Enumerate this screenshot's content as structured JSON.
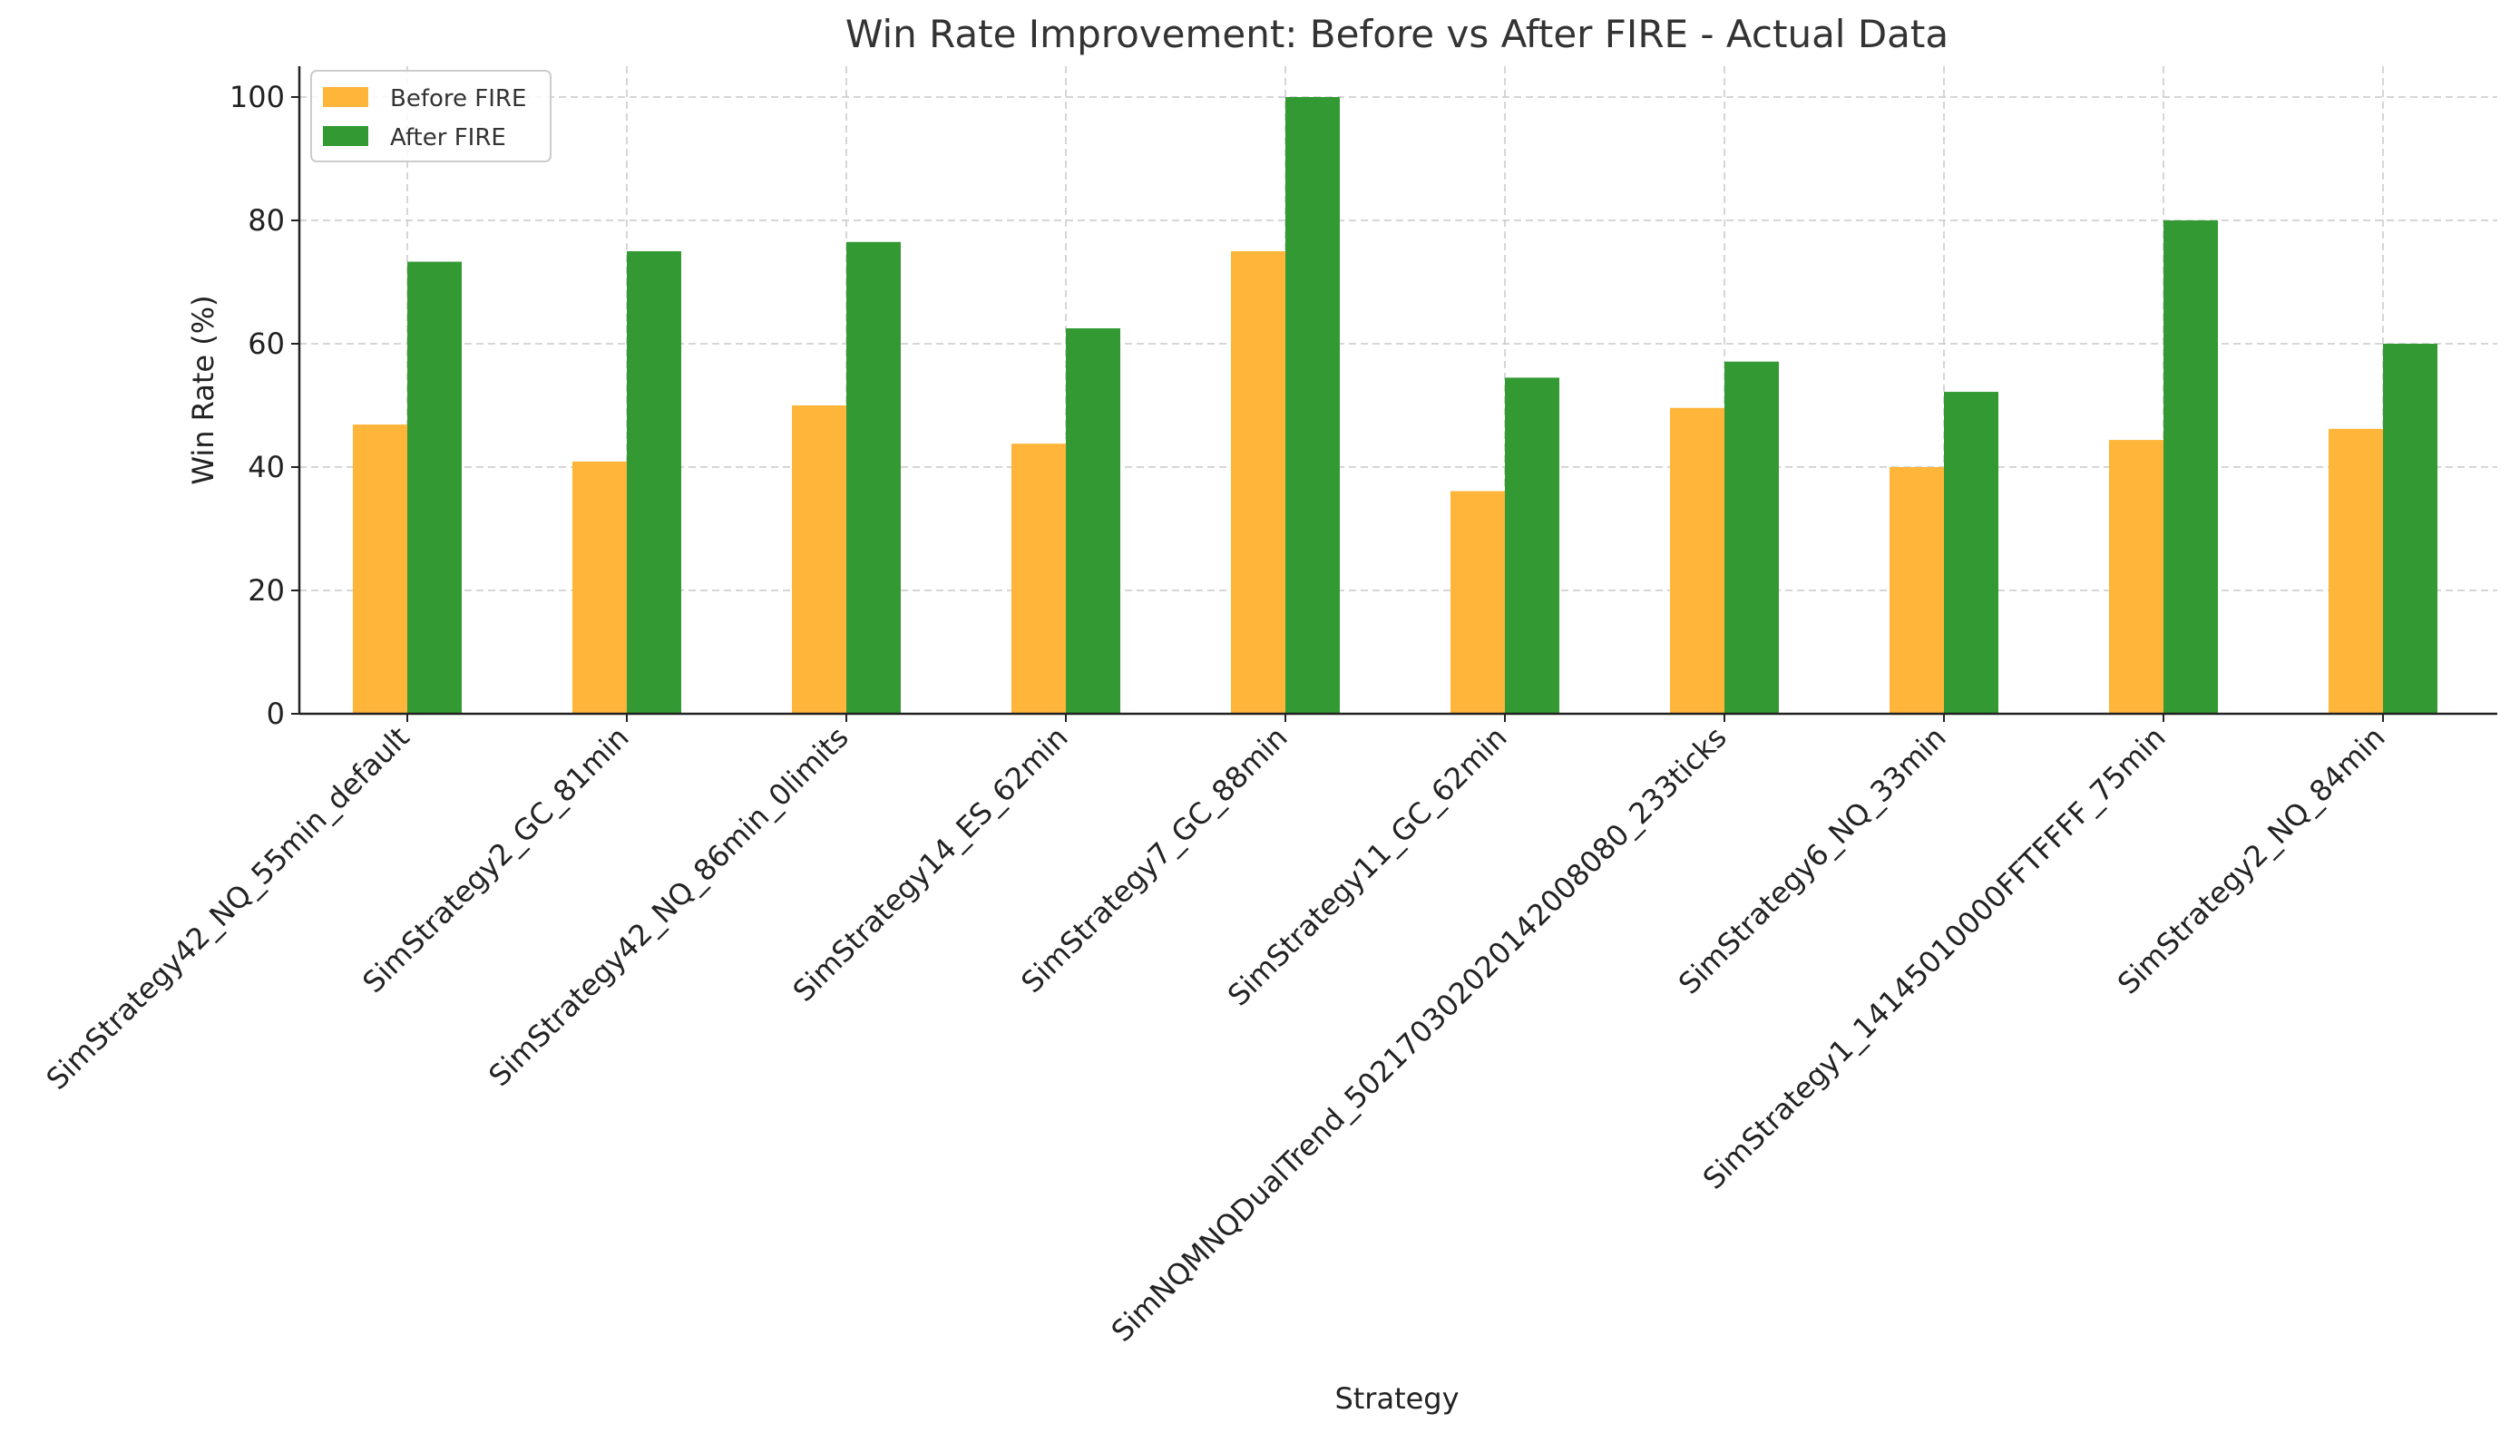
{
  "chart_data": {
    "type": "bar",
    "title": "Win Rate Improvement: Before vs After FIRE - Actual Data",
    "xlabel": "Strategy",
    "ylabel": "Win Rate (%)",
    "ylim": [
      0,
      105
    ],
    "yticks": [
      0,
      20,
      40,
      60,
      80,
      100
    ],
    "grid": true,
    "legend_position": "top-left",
    "categories": [
      "SimStrategy42_NQ_55min_default",
      "SimStrategy2_GC_81min",
      "SimStrategy42_NQ_86min_0limits",
      "SimStrategy14_ES_62min",
      "SimStrategy7_GC_88min",
      "SimStrategy11_GC_62min",
      "SimNQMNQDualTrend_502170302020142008080_233ticks",
      "SimStrategy6_NQ_33min",
      "SimStrategy1_14145010000FFTFFFF_75min",
      "SimStrategy2_NQ_84min"
    ],
    "series": [
      {
        "name": "Before FIRE",
        "color": "#ffb43a",
        "values": [
          46.9,
          40.9,
          50.0,
          43.8,
          75.0,
          36.1,
          49.6,
          40.0,
          44.4,
          46.2
        ]
      },
      {
        "name": "After FIRE",
        "color": "#339933",
        "values": [
          73.3,
          75.0,
          76.5,
          62.5,
          100.0,
          54.5,
          57.1,
          52.2,
          80.0,
          60.0
        ]
      }
    ]
  }
}
